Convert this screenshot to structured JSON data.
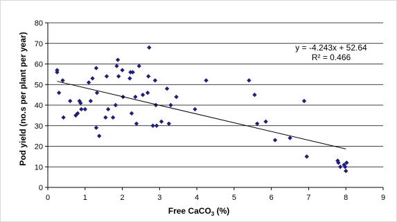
{
  "chart_data": {
    "type": "scatter",
    "xlabel_main": "Free CaCO",
    "xlabel_sub": "3",
    "xlabel_tail": " (%)",
    "ylabel": "Pod yield (no.s per plant per year)",
    "xlim": [
      0,
      9
    ],
    "ylim": [
      0,
      80
    ],
    "xticks": [
      0,
      1,
      2,
      3,
      4,
      5,
      6,
      7,
      8,
      9
    ],
    "yticks": [
      0,
      10,
      20,
      30,
      40,
      50,
      60,
      70,
      80
    ],
    "grid": "horizontal",
    "marker_color": "#1f1f7a",
    "trendline": {
      "slope": -4.243,
      "intercept": 52.64,
      "x_range": [
        0.25,
        8.0
      ],
      "equation": "y = -4.243x + 52.64",
      "r2": "R² = 0.466"
    },
    "points": [
      {
        "x": 0.25,
        "y": 57
      },
      {
        "x": 0.25,
        "y": 56
      },
      {
        "x": 0.3,
        "y": 46
      },
      {
        "x": 0.4,
        "y": 52
      },
      {
        "x": 0.42,
        "y": 34
      },
      {
        "x": 0.6,
        "y": 42
      },
      {
        "x": 0.75,
        "y": 35
      },
      {
        "x": 0.8,
        "y": 36
      },
      {
        "x": 0.85,
        "y": 42
      },
      {
        "x": 0.88,
        "y": 41
      },
      {
        "x": 0.9,
        "y": 38
      },
      {
        "x": 1.0,
        "y": 38
      },
      {
        "x": 1.1,
        "y": 51
      },
      {
        "x": 1.15,
        "y": 42
      },
      {
        "x": 1.2,
        "y": 53
      },
      {
        "x": 1.3,
        "y": 58
      },
      {
        "x": 1.3,
        "y": 29
      },
      {
        "x": 1.32,
        "y": 46
      },
      {
        "x": 1.38,
        "y": 25
      },
      {
        "x": 1.55,
        "y": 34
      },
      {
        "x": 1.58,
        "y": 54
      },
      {
        "x": 1.62,
        "y": 38
      },
      {
        "x": 1.75,
        "y": 34
      },
      {
        "x": 1.82,
        "y": 40
      },
      {
        "x": 1.85,
        "y": 59
      },
      {
        "x": 1.88,
        "y": 62
      },
      {
        "x": 1.9,
        "y": 54
      },
      {
        "x": 2.0,
        "y": 57
      },
      {
        "x": 2.02,
        "y": 44
      },
      {
        "x": 2.2,
        "y": 53
      },
      {
        "x": 2.22,
        "y": 56
      },
      {
        "x": 2.25,
        "y": 36
      },
      {
        "x": 2.28,
        "y": 56
      },
      {
        "x": 2.35,
        "y": 44
      },
      {
        "x": 2.38,
        "y": 31
      },
      {
        "x": 2.45,
        "y": 59
      },
      {
        "x": 2.55,
        "y": 45
      },
      {
        "x": 2.68,
        "y": 46
      },
      {
        "x": 2.7,
        "y": 54
      },
      {
        "x": 2.72,
        "y": 68
      },
      {
        "x": 2.82,
        "y": 30
      },
      {
        "x": 2.88,
        "y": 52
      },
      {
        "x": 2.9,
        "y": 40
      },
      {
        "x": 2.92,
        "y": 30
      },
      {
        "x": 3.05,
        "y": 32
      },
      {
        "x": 3.2,
        "y": 48
      },
      {
        "x": 3.25,
        "y": 31
      },
      {
        "x": 3.3,
        "y": 40
      },
      {
        "x": 3.45,
        "y": 44
      },
      {
        "x": 3.95,
        "y": 38
      },
      {
        "x": 4.25,
        "y": 52
      },
      {
        "x": 5.4,
        "y": 52
      },
      {
        "x": 5.55,
        "y": 45
      },
      {
        "x": 5.62,
        "y": 31
      },
      {
        "x": 5.85,
        "y": 32
      },
      {
        "x": 6.1,
        "y": 23
      },
      {
        "x": 6.5,
        "y": 24
      },
      {
        "x": 6.88,
        "y": 42
      },
      {
        "x": 6.95,
        "y": 15
      },
      {
        "x": 7.78,
        "y": 13
      },
      {
        "x": 7.8,
        "y": 12
      },
      {
        "x": 7.85,
        "y": 10
      },
      {
        "x": 7.95,
        "y": 11
      },
      {
        "x": 7.98,
        "y": 10
      },
      {
        "x": 8.0,
        "y": 8
      },
      {
        "x": 8.02,
        "y": 12
      }
    ]
  }
}
